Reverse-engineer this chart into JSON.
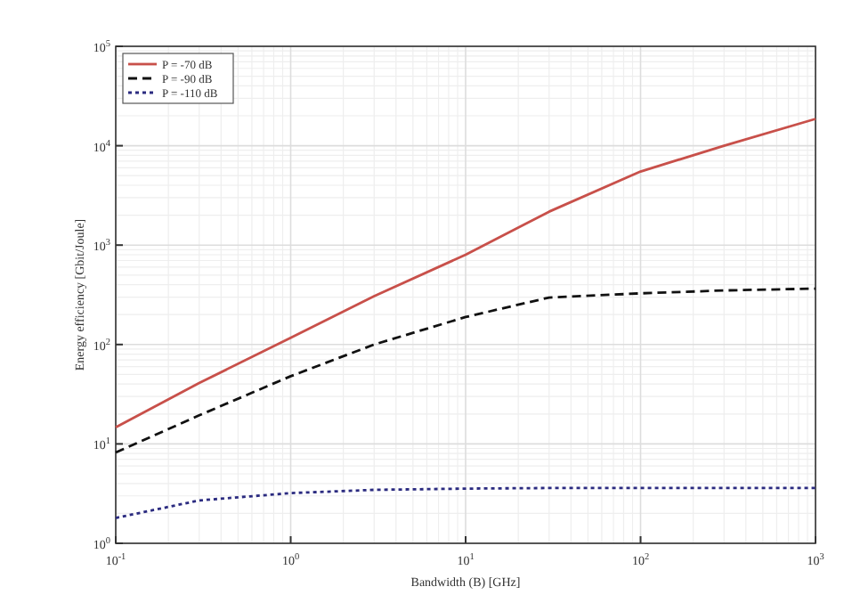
{
  "chart_data": {
    "type": "line",
    "xlabel": "Bandwidth (B) [GHz]",
    "ylabel": "Energy efficiency [Gbit/Joule]",
    "log": "xy",
    "grid": true,
    "legend": "top left",
    "xlim": [
      0.1,
      1000
    ],
    "ylim": [
      1,
      100000
    ],
    "xticks": [
      {
        "value": 0.1,
        "label": "10$^{-1}$"
      },
      {
        "value": 1,
        "label": "10$^{0}$"
      },
      {
        "value": 10,
        "label": "10$^{1}$"
      },
      {
        "value": 100,
        "label": "10$^{2}$"
      },
      {
        "value": 1000,
        "label": "10$^{3}$"
      }
    ],
    "yticks": [
      {
        "value": 1,
        "label": "10$^{0}$"
      },
      {
        "value": 10,
        "label": "10$^{1}$"
      },
      {
        "value": 100,
        "label": "10$^{2}$"
      },
      {
        "value": 1000,
        "label": "10$^{3}$"
      },
      {
        "value": 10000,
        "label": "10$^{4}$"
      },
      {
        "value": 100000,
        "label": "10$^{5}$"
      }
    ],
    "x": [
      0.1,
      0.3,
      1,
      3,
      10,
      30,
      100,
      300,
      1000
    ],
    "series": [
      {
        "name": "P = -70 dB",
        "color": "#c8504a",
        "line_style": "solid",
        "values": [
          14.7,
          41,
          117,
          306,
          800,
          2170,
          5500,
          10000,
          18600
        ]
      },
      {
        "name": "P = -90 dB",
        "color": "#111111",
        "line_style": "dashed",
        "values": [
          8.2,
          19.4,
          48,
          100,
          189,
          297,
          327,
          350,
          365
        ]
      },
      {
        "name": "P = -110 dB",
        "color": "#2b2b80",
        "line_style": "dotted",
        "values": [
          1.8,
          2.7,
          3.2,
          3.45,
          3.55,
          3.6,
          3.6,
          3.6,
          3.6
        ]
      }
    ]
  }
}
